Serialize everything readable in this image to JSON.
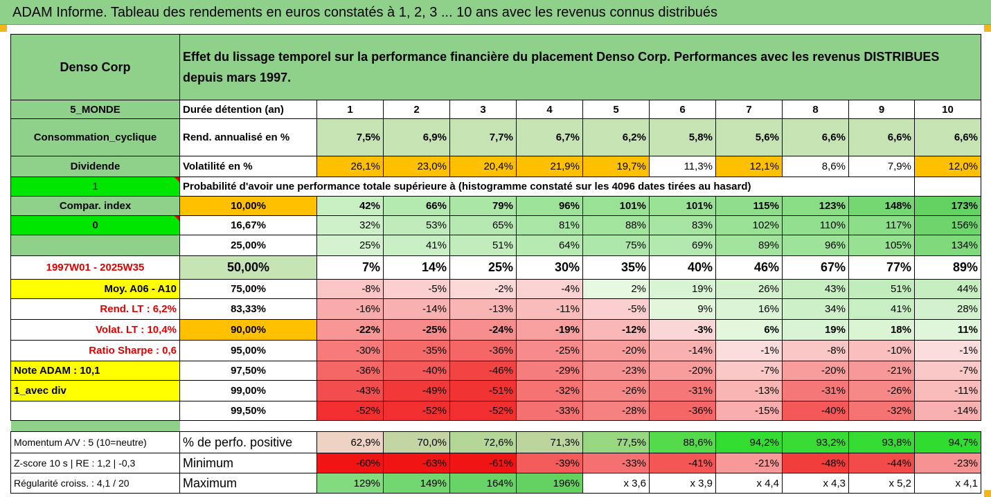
{
  "banner_title": "ADAM Informe. Tableau des rendements en euros constatés à 1, 2, 3 ... 10 ans avec les revenus connus distribués",
  "header": {
    "company": "Denso Corp",
    "description": "Effet du lissage temporel sur la performance financière du placement Denso Corp. Performances avec les revenus DISTRIBUES depuis mars 1997."
  },
  "left_panel": {
    "region": "5_MONDE",
    "sector": "Consommation_cyclique",
    "dividend_label": "Dividende",
    "dividend_value": "1",
    "compar_label": "Compar. index",
    "compar_value": "0",
    "period": "1997W01 - 2025W35",
    "moy": "Moy. A06 - A10",
    "rend_lt": "Rend. LT :   6,2%",
    "volat_lt": "Volat. LT :   10,4%",
    "sharpe": "Ratio Sharpe :   0,6",
    "note": "Note ADAM : 10,1",
    "avec_div": "1_avec div"
  },
  "years": {
    "label": "Durée détention (an)",
    "values": [
      "1",
      "2",
      "3",
      "4",
      "5",
      "6",
      "7",
      "8",
      "9",
      "10"
    ]
  },
  "rend": {
    "label": "Rend. annualisé en %",
    "values": [
      "7,5%",
      "6,9%",
      "7,7%",
      "6,7%",
      "6,2%",
      "5,8%",
      "5,6%",
      "6,6%",
      "6,6%",
      "6,6%"
    ]
  },
  "vol": {
    "label": "Volatilité en %",
    "values": [
      "26,1%",
      "23,0%",
      "20,4%",
      "21,9%",
      "19,7%",
      "11,3%",
      "12,1%",
      "8,6%",
      "7,9%",
      "12,0%"
    ]
  },
  "prob_title": "Probabilité d'avoir une performance totale supérieure à (histogramme constaté sur les 4096 dates tirées au hasard)",
  "pct_rows": [
    {
      "pct": "10,00%",
      "values": [
        "42%",
        "66%",
        "79%",
        "96%",
        "101%",
        "101%",
        "115%",
        "123%",
        "148%",
        "173%"
      ]
    },
    {
      "pct": "16,67%",
      "values": [
        "32%",
        "53%",
        "65%",
        "81%",
        "88%",
        "83%",
        "102%",
        "110%",
        "117%",
        "156%"
      ]
    },
    {
      "pct": "25,00%",
      "values": [
        "25%",
        "41%",
        "51%",
        "64%",
        "75%",
        "69%",
        "89%",
        "96%",
        "105%",
        "134%"
      ]
    },
    {
      "pct": "50,00%",
      "values": [
        "7%",
        "14%",
        "25%",
        "30%",
        "35%",
        "40%",
        "46%",
        "67%",
        "77%",
        "89%"
      ]
    },
    {
      "pct": "75,00%",
      "values": [
        "-8%",
        "-5%",
        "-2%",
        "-4%",
        "2%",
        "19%",
        "26%",
        "43%",
        "51%",
        "44%"
      ]
    },
    {
      "pct": "83,33%",
      "values": [
        "-16%",
        "-14%",
        "-13%",
        "-11%",
        "-5%",
        "9%",
        "16%",
        "34%",
        "41%",
        "28%"
      ]
    },
    {
      "pct": "90,00%",
      "values": [
        "-22%",
        "-25%",
        "-24%",
        "-19%",
        "-12%",
        "-3%",
        "6%",
        "19%",
        "18%",
        "11%"
      ]
    },
    {
      "pct": "95,00%",
      "values": [
        "-30%",
        "-35%",
        "-36%",
        "-25%",
        "-20%",
        "-14%",
        "-1%",
        "-8%",
        "-10%",
        "-1%"
      ]
    },
    {
      "pct": "97,50%",
      "values": [
        "-36%",
        "-40%",
        "-46%",
        "-29%",
        "-23%",
        "-20%",
        "-7%",
        "-20%",
        "-21%",
        "-7%"
      ]
    },
    {
      "pct": "99,00%",
      "values": [
        "-43%",
        "-49%",
        "-51%",
        "-32%",
        "-26%",
        "-31%",
        "-13%",
        "-31%",
        "-26%",
        "-11%"
      ]
    },
    {
      "pct": "99,50%",
      "values": [
        "-52%",
        "-52%",
        "-52%",
        "-33%",
        "-28%",
        "-36%",
        "-15%",
        "-40%",
        "-32%",
        "-14%"
      ]
    }
  ],
  "bottom": {
    "momentum": "Momentum A/V : 5 (10=neutre)",
    "zscore": "Z-score 10 s  |  RE : 1,2  |  -0,3",
    "regularite": "Régularité croiss. : 4,1 / 20",
    "positive_label": "% de perfo. positive",
    "positive": [
      "62,9%",
      "70,0%",
      "72,6%",
      "71,3%",
      "77,5%",
      "88,6%",
      "94,2%",
      "93,2%",
      "93,8%",
      "94,7%"
    ],
    "min_label": "Minimum",
    "min": [
      "-60%",
      "-63%",
      "-61%",
      "-39%",
      "-33%",
      "-41%",
      "-21%",
      "-48%",
      "-44%",
      "-23%"
    ],
    "max_label": "Maximum",
    "max": [
      "129%",
      "149%",
      "164%",
      "196%",
      "x 3,6",
      "x 3,9",
      "x 4,4",
      "x 4,3",
      "x 5,2",
      "x 4,1"
    ]
  },
  "colors": {
    "header_green": "#8fd18a",
    "orange": "#ffc000",
    "yellow": "#ffff00",
    "bright_green": "#00e600",
    "red_text": "#e00000"
  }
}
